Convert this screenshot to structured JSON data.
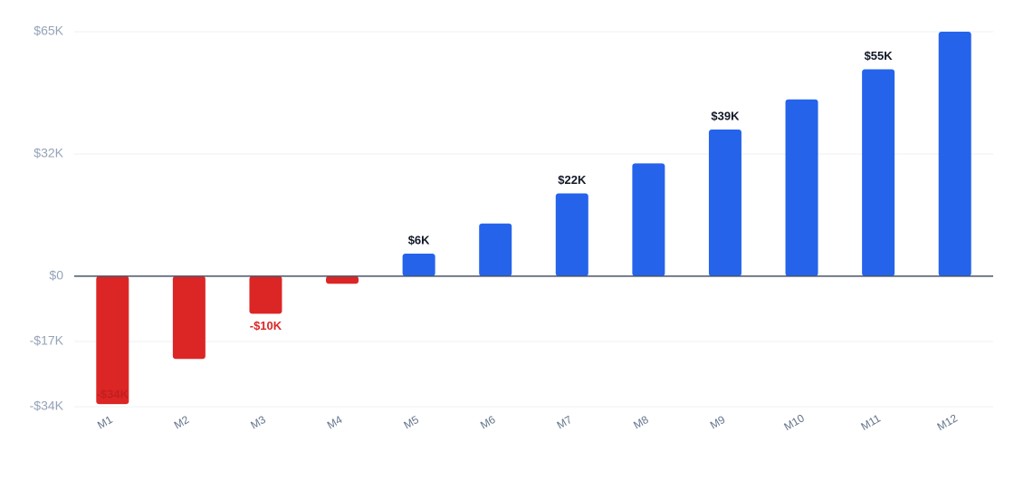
{
  "chart_data": {
    "type": "bar",
    "categories": [
      "M1",
      "M2",
      "M3",
      "M4",
      "M5",
      "M6",
      "M7",
      "M8",
      "M9",
      "M10",
      "M11",
      "M12"
    ],
    "values": [
      -34000,
      -22000,
      -10000,
      -2000,
      6000,
      14000,
      22000,
      30000,
      39000,
      47000,
      55000,
      65000
    ],
    "value_labels": [
      "-$34K",
      null,
      "-$10K",
      null,
      "$6K",
      null,
      "$22K",
      null,
      "$39K",
      null,
      "$55K",
      null
    ],
    "positive_color": "#2563eb",
    "negative_color": "#dc2626",
    "ylim": [
      -34700,
      65000
    ],
    "yticks": [
      {
        "value": 65000,
        "label": "$65K"
      },
      {
        "value": 32500,
        "label": "$32K"
      },
      {
        "value": 0,
        "label": "$0"
      },
      {
        "value": -17350,
        "label": "-$17K"
      },
      {
        "value": -34700,
        "label": "-$34K"
      }
    ],
    "grid": true
  }
}
